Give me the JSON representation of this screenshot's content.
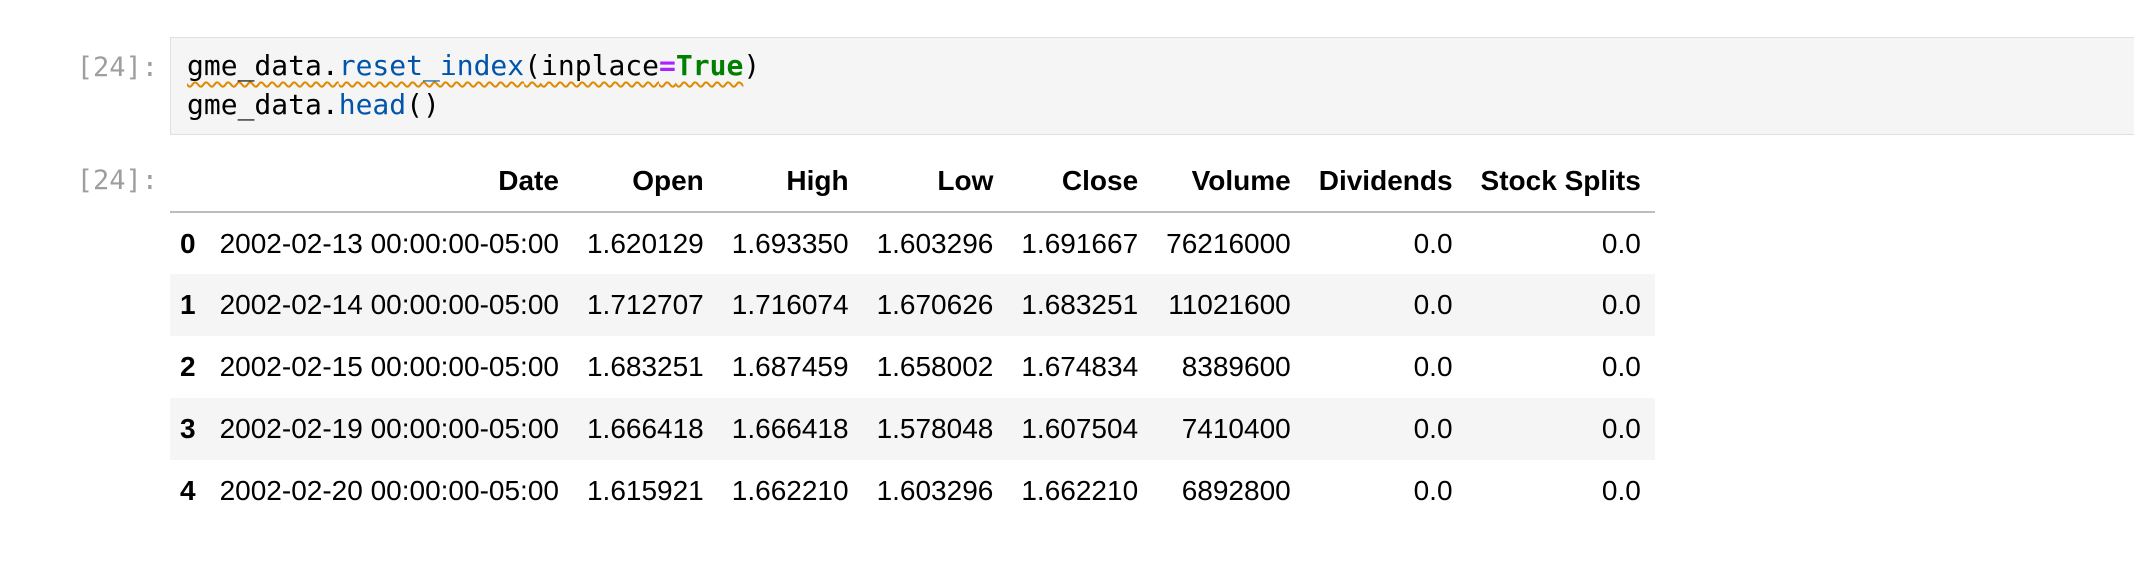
{
  "notebook": {
    "input_prompt": "[24]:",
    "output_prompt": "[24]:",
    "code": {
      "line1": {
        "object": "gme_data.",
        "method": "reset_index",
        "open_paren": "(",
        "arg_name": "inplace",
        "equals": "=",
        "arg_value": "True",
        "close_paren": ")"
      },
      "line2": {
        "object": "gme_data.",
        "method": "head",
        "parens": "()"
      }
    }
  },
  "dataframe": {
    "columns": [
      "",
      "Date",
      "Open",
      "High",
      "Low",
      "Close",
      "Volume",
      "Dividends",
      "Stock Splits"
    ],
    "rows": [
      {
        "index": "0",
        "cells": [
          "2002-02-13 00:00:00-05:00",
          "1.620129",
          "1.693350",
          "1.603296",
          "1.691667",
          "76216000",
          "0.0",
          "0.0"
        ]
      },
      {
        "index": "1",
        "cells": [
          "2002-02-14 00:00:00-05:00",
          "1.712707",
          "1.716074",
          "1.670626",
          "1.683251",
          "11021600",
          "0.0",
          "0.0"
        ]
      },
      {
        "index": "2",
        "cells": [
          "2002-02-15 00:00:00-05:00",
          "1.683251",
          "1.687459",
          "1.658002",
          "1.674834",
          "8389600",
          "0.0",
          "0.0"
        ]
      },
      {
        "index": "3",
        "cells": [
          "2002-02-19 00:00:00-05:00",
          "1.666418",
          "1.666418",
          "1.578048",
          "1.607504",
          "7410400",
          "0.0",
          "0.0"
        ]
      },
      {
        "index": "4",
        "cells": [
          "2002-02-20 00:00:00-05:00",
          "1.615921",
          "1.662210",
          "1.603296",
          "1.662210",
          "6892800",
          "0.0",
          "0.0"
        ]
      }
    ]
  },
  "colors": {
    "method": "#0055aa",
    "operator": "#aa22ff",
    "keyword": "#008000",
    "warning_squiggle": "#e08a00",
    "prompt": "#9e9e9e",
    "cell_background": "#f5f5f5"
  }
}
